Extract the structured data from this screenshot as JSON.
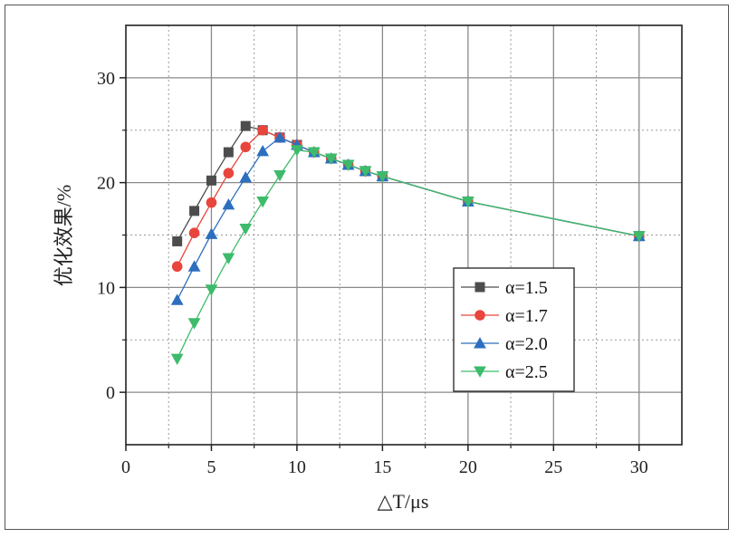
{
  "chart_data": {
    "type": "line",
    "title": "",
    "xlabel": "△T/μs",
    "ylabel": "优化效果/%",
    "xlim": [
      0,
      32.5
    ],
    "ylim": [
      -5,
      35
    ],
    "xticks": [
      0,
      5,
      10,
      15,
      20,
      25,
      30
    ],
    "yticks": [
      0,
      10,
      20,
      30
    ],
    "x_minor_step": 2.5,
    "y_minor_step": 5,
    "grid": true,
    "legend_position": "center-right",
    "series": [
      {
        "name": "α=1.5",
        "marker": "square",
        "color": "#4d4d4d",
        "points": [
          [
            3,
            14.4
          ],
          [
            4,
            17.3
          ],
          [
            5,
            20.2
          ],
          [
            6,
            22.9
          ],
          [
            7,
            25.4
          ],
          [
            8,
            25.0
          ],
          [
            9,
            24.3
          ],
          [
            10,
            23.6
          ],
          [
            11,
            22.9
          ],
          [
            12,
            22.3
          ],
          [
            13,
            21.7
          ],
          [
            14,
            21.1
          ],
          [
            15,
            20.6
          ],
          [
            20,
            18.2
          ],
          [
            30,
            14.9
          ]
        ]
      },
      {
        "name": "α=1.7",
        "marker": "circle",
        "color": "#e8453c",
        "points": [
          [
            3,
            12.0
          ],
          [
            4,
            15.2
          ],
          [
            5,
            18.1
          ],
          [
            6,
            20.9
          ],
          [
            7,
            23.4
          ],
          [
            8,
            25.0
          ],
          [
            9,
            24.3
          ],
          [
            10,
            23.6
          ],
          [
            11,
            22.9
          ],
          [
            12,
            22.3
          ],
          [
            13,
            21.7
          ],
          [
            14,
            21.1
          ],
          [
            15,
            20.6
          ],
          [
            20,
            18.2
          ],
          [
            30,
            14.9
          ]
        ]
      },
      {
        "name": "α=2.0",
        "marker": "triangle-up",
        "color": "#2c6fbf",
        "points": [
          [
            3,
            8.8
          ],
          [
            4,
            12.0
          ],
          [
            5,
            15.1
          ],
          [
            6,
            17.9
          ],
          [
            7,
            20.5
          ],
          [
            8,
            23.0
          ],
          [
            9,
            24.3
          ],
          [
            10,
            23.6
          ],
          [
            11,
            22.9
          ],
          [
            12,
            22.3
          ],
          [
            13,
            21.7
          ],
          [
            14,
            21.1
          ],
          [
            15,
            20.6
          ],
          [
            20,
            18.2
          ],
          [
            30,
            14.9
          ]
        ]
      },
      {
        "name": "α=2.5",
        "marker": "triangle-down",
        "color": "#3dbb6b",
        "points": [
          [
            3,
            3.2
          ],
          [
            4,
            6.6
          ],
          [
            5,
            9.8
          ],
          [
            6,
            12.8
          ],
          [
            7,
            15.6
          ],
          [
            8,
            18.2
          ],
          [
            9,
            20.7
          ],
          [
            10,
            23.1
          ],
          [
            11,
            22.9
          ],
          [
            12,
            22.3
          ],
          [
            13,
            21.7
          ],
          [
            14,
            21.1
          ],
          [
            15,
            20.6
          ],
          [
            20,
            18.2
          ],
          [
            30,
            14.9
          ]
        ]
      }
    ]
  }
}
